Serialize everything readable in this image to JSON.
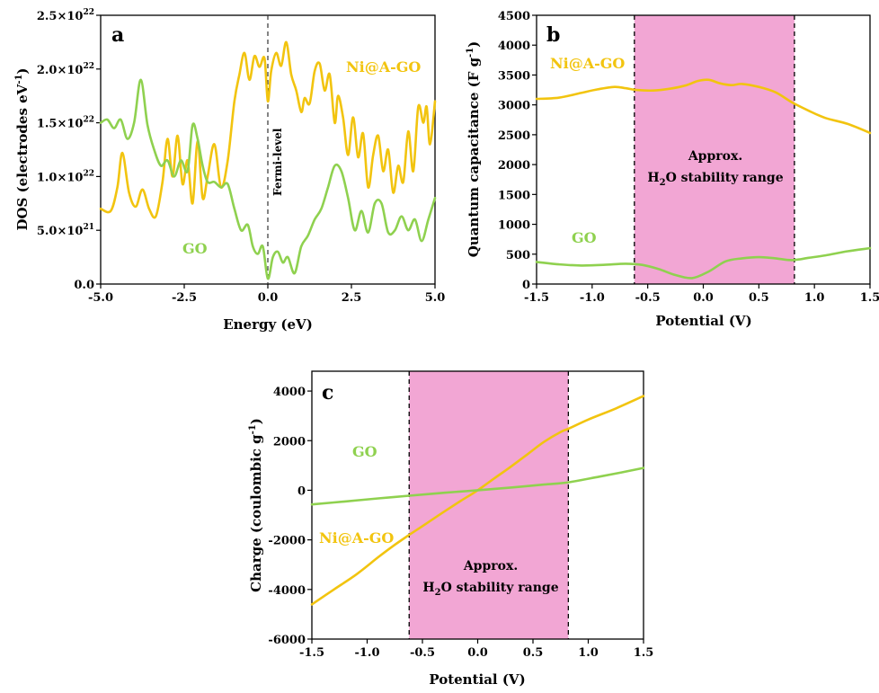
{
  "chart_data": [
    {
      "id": "a",
      "type": "line",
      "panel_label": "a",
      "xlabel": "Energy (eV)",
      "ylabel": "DOS (electrodes eV",
      "ylabel_sup": "-1",
      "ylabel_end": ")",
      "xlim": [
        -5,
        5
      ],
      "ylim": [
        0,
        25
      ],
      "x_ticks": [
        -5,
        -2.5,
        0,
        2.5,
        5
      ],
      "x_tick_labels": [
        "-5.0",
        "-2.5",
        "0.0",
        "2.5",
        "5.0"
      ],
      "y_ticks": [
        0,
        5,
        10,
        15,
        20,
        25
      ],
      "y_tick_labels": [
        {
          "base": "0.0",
          "sup": ""
        },
        {
          "base": "5.0×10",
          "sup": "21"
        },
        {
          "base": "1.0×10",
          "sup": "22"
        },
        {
          "base": "1.5×10",
          "sup": "22"
        },
        {
          "base": "2.0×10",
          "sup": "22"
        },
        {
          "base": "2.5×10",
          "sup": "22"
        }
      ],
      "y_unit_note": "values in units of 1e21",
      "vline": {
        "x": 0,
        "label": "Fermi-level"
      },
      "series": [
        {
          "name": "Ni@A-GO",
          "color": "#F2C40F",
          "x": [
            -5.0,
            -4.7,
            -4.5,
            -4.35,
            -4.15,
            -3.95,
            -3.75,
            -3.55,
            -3.35,
            -3.15,
            -3.0,
            -2.85,
            -2.7,
            -2.55,
            -2.4,
            -2.25,
            -2.1,
            -1.95,
            -1.8,
            -1.6,
            -1.4,
            -1.2,
            -1.0,
            -0.85,
            -0.7,
            -0.55,
            -0.4,
            -0.25,
            -0.1,
            0.0,
            0.1,
            0.25,
            0.4,
            0.55,
            0.7,
            0.85,
            1.0,
            1.1,
            1.25,
            1.4,
            1.55,
            1.7,
            1.85,
            2.0,
            2.1,
            2.25,
            2.4,
            2.55,
            2.7,
            2.85,
            3.0,
            3.15,
            3.3,
            3.45,
            3.6,
            3.75,
            3.9,
            4.05,
            4.2,
            4.35,
            4.5,
            4.65,
            4.75,
            4.85,
            5.0
          ],
          "y": [
            7.0,
            6.8,
            9.0,
            12.2,
            8.5,
            7.2,
            8.8,
            7.0,
            6.3,
            9.5,
            13.5,
            10.0,
            13.8,
            9.3,
            11.5,
            7.5,
            13.3,
            8.0,
            10.0,
            13.0,
            9.0,
            11.5,
            17.0,
            19.5,
            21.5,
            19.0,
            21.2,
            20.2,
            21.0,
            17.0,
            19.8,
            21.5,
            20.3,
            22.5,
            19.5,
            18.0,
            16.0,
            17.3,
            16.8,
            19.8,
            20.5,
            18.0,
            19.5,
            15.0,
            17.5,
            15.5,
            12.0,
            15.5,
            11.8,
            14.0,
            9.0,
            12.0,
            13.8,
            10.5,
            12.5,
            8.5,
            11.0,
            9.5,
            14.2,
            10.5,
            16.5,
            15.0,
            16.5,
            13.0,
            17.0
          ]
        },
        {
          "name": "GO",
          "color": "#8FD14F",
          "x": [
            -5.0,
            -4.8,
            -4.6,
            -4.4,
            -4.2,
            -4.0,
            -3.8,
            -3.6,
            -3.4,
            -3.2,
            -3.0,
            -2.8,
            -2.6,
            -2.4,
            -2.25,
            -2.1,
            -1.95,
            -1.8,
            -1.6,
            -1.4,
            -1.2,
            -1.0,
            -0.8,
            -0.6,
            -0.45,
            -0.3,
            -0.15,
            0.0,
            0.15,
            0.3,
            0.45,
            0.6,
            0.8,
            1.0,
            1.2,
            1.4,
            1.6,
            1.8,
            2.0,
            2.2,
            2.4,
            2.6,
            2.8,
            3.0,
            3.2,
            3.4,
            3.6,
            3.8,
            4.0,
            4.2,
            4.4,
            4.6,
            4.8,
            5.0
          ],
          "y": [
            15.0,
            15.3,
            14.5,
            15.3,
            13.5,
            15.0,
            19.0,
            14.8,
            12.5,
            11.0,
            11.5,
            10.0,
            11.5,
            10.5,
            14.8,
            13.5,
            11.0,
            9.5,
            9.5,
            9.0,
            9.3,
            7.0,
            5.0,
            5.5,
            3.5,
            2.8,
            3.5,
            0.5,
            2.5,
            3.0,
            2.0,
            2.5,
            1.0,
            3.5,
            4.5,
            6.0,
            7.0,
            9.0,
            11.0,
            10.5,
            8.0,
            5.0,
            6.8,
            4.8,
            7.5,
            7.5,
            4.8,
            5.0,
            6.3,
            5.0,
            6.0,
            4.0,
            6.0,
            8.0
          ]
        }
      ],
      "annotations": [
        {
          "text": "Ni@A-GO",
          "color": "#F2C40F"
        },
        {
          "text": "GO",
          "color": "#8FD14F"
        }
      ]
    },
    {
      "id": "b",
      "type": "line",
      "panel_label": "b",
      "xlabel": "Potential (V)",
      "ylabel": "Quantum capacitance (F g",
      "ylabel_sup": "-1",
      "ylabel_end": ")",
      "xlim": [
        -1.5,
        1.5
      ],
      "ylim": [
        0,
        4500
      ],
      "x_ticks": [
        -1.5,
        -1.0,
        -0.5,
        0.0,
        0.5,
        1.0,
        1.5
      ],
      "x_tick_labels": [
        "-1.5",
        "-1.0",
        "-0.5",
        "0.0",
        "0.5",
        "1.0",
        "1.5"
      ],
      "y_ticks": [
        0,
        500,
        1000,
        1500,
        2000,
        2500,
        3000,
        3500,
        4000,
        4500
      ],
      "y_tick_labels": [
        "0",
        "500",
        "1000",
        "1500",
        "2000",
        "2500",
        "3000",
        "3500",
        "4000",
        "4500"
      ],
      "shaded_region": {
        "x0": -0.62,
        "x1": 0.82,
        "color": "#F2A6D4"
      },
      "region_text": {
        "line1": "Approx.",
        "pre": "H",
        "sub": "2",
        "post": "O stability range"
      },
      "series": [
        {
          "name": "Ni@A-GO",
          "color": "#F2C40F",
          "x": [
            -1.5,
            -1.3,
            -1.1,
            -0.95,
            -0.8,
            -0.7,
            -0.6,
            -0.45,
            -0.3,
            -0.15,
            -0.05,
            0.05,
            0.15,
            0.25,
            0.35,
            0.5,
            0.65,
            0.8,
            0.95,
            1.1,
            1.3,
            1.5
          ],
          "y": [
            3100,
            3120,
            3200,
            3260,
            3300,
            3280,
            3250,
            3240,
            3270,
            3330,
            3400,
            3420,
            3360,
            3330,
            3350,
            3300,
            3210,
            3040,
            2900,
            2780,
            2680,
            2530
          ]
        },
        {
          "name": "GO",
          "color": "#8FD14F",
          "x": [
            -1.5,
            -1.3,
            -1.1,
            -0.9,
            -0.7,
            -0.55,
            -0.4,
            -0.25,
            -0.1,
            0.05,
            0.2,
            0.35,
            0.5,
            0.65,
            0.8,
            0.95,
            1.1,
            1.3,
            1.5
          ],
          "y": [
            370,
            330,
            310,
            320,
            340,
            320,
            250,
            150,
            100,
            210,
            380,
            430,
            450,
            430,
            400,
            440,
            480,
            550,
            600
          ]
        }
      ],
      "annotations": [
        {
          "text": "Ni@A-GO",
          "color": "#F2C40F"
        },
        {
          "text": "GO",
          "color": "#8FD14F"
        }
      ]
    },
    {
      "id": "c",
      "type": "line",
      "panel_label": "c",
      "xlabel": "Potential (V)",
      "ylabel": "Charge (coulombic g",
      "ylabel_sup": "-1",
      "ylabel_end": ")",
      "xlim": [
        -1.5,
        1.5
      ],
      "ylim": [
        -6000,
        4800
      ],
      "x_ticks": [
        -1.5,
        -1.0,
        -0.5,
        0.0,
        0.5,
        1.0,
        1.5
      ],
      "x_tick_labels": [
        "-1.5",
        "-1.0",
        "-0.5",
        "0.0",
        "0.5",
        "1.0",
        "1.5"
      ],
      "y_ticks": [
        -6000,
        -4000,
        -2000,
        0,
        2000,
        4000
      ],
      "y_tick_labels": [
        "-6000",
        "-4000",
        "-2000",
        "0",
        "2000",
        "4000"
      ],
      "shaded_region": {
        "x0": -0.62,
        "x1": 0.82,
        "color": "#F2A6D4"
      },
      "region_text": {
        "line1": "Approx.",
        "pre": "H",
        "sub": "2",
        "post": "O stability range"
      },
      "series": [
        {
          "name": "Ni@A-GO",
          "color": "#F2C40F",
          "x": [
            -1.5,
            -1.3,
            -1.1,
            -0.9,
            -0.75,
            -0.62,
            -0.45,
            -0.3,
            -0.15,
            0.0,
            0.15,
            0.3,
            0.45,
            0.6,
            0.75,
            0.82,
            1.0,
            1.25,
            1.5
          ],
          "y": [
            -4600,
            -4000,
            -3400,
            -2700,
            -2200,
            -1800,
            -1300,
            -850,
            -420,
            0,
            480,
            950,
            1450,
            1950,
            2350,
            2480,
            2850,
            3300,
            3800
          ]
        },
        {
          "name": "GO",
          "color": "#8FD14F",
          "x": [
            -1.5,
            -1.2,
            -0.9,
            -0.62,
            -0.3,
            0.0,
            0.3,
            0.6,
            0.82,
            1.1,
            1.3,
            1.5
          ],
          "y": [
            -570,
            -450,
            -330,
            -220,
            -100,
            0,
            110,
            230,
            320,
            550,
            720,
            900
          ]
        }
      ],
      "annotations": [
        {
          "text": "GO",
          "color": "#8FD14F"
        },
        {
          "text": "Ni@A-GO",
          "color": "#F2C40F"
        }
      ]
    }
  ]
}
